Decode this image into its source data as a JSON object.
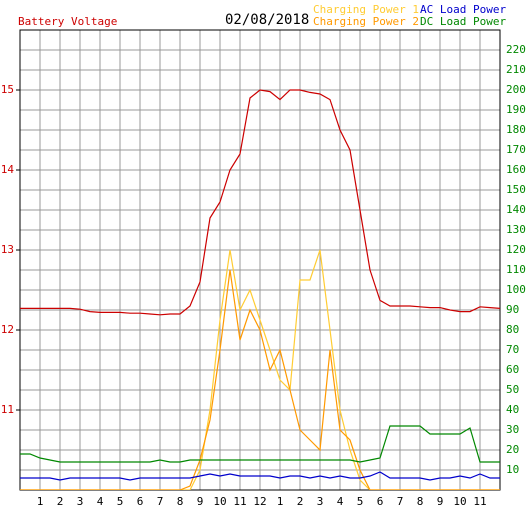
{
  "chart_data": {
    "type": "line",
    "date": "02/08/2018",
    "grid": true,
    "x": [
      0,
      0.5,
      1,
      1.5,
      2,
      2.5,
      3,
      3.5,
      4,
      4.5,
      5,
      5.5,
      6,
      6.5,
      7,
      7.5,
      8,
      8.5,
      9,
      9.5,
      10,
      10.5,
      11,
      11.5,
      12,
      12.5,
      13,
      13.5,
      14,
      14.5,
      15,
      15.5,
      16,
      16.5,
      17,
      17.5,
      18,
      18.5,
      19,
      19.5,
      20,
      20.5,
      21,
      21.5,
      22,
      22.5,
      23,
      23.5,
      24
    ],
    "xlim": [
      0,
      24
    ],
    "xticks": [
      1,
      2,
      3,
      4,
      5,
      6,
      7,
      8,
      9,
      10,
      11,
      12,
      {
        "value": 13,
        "label": "1"
      },
      {
        "value": 14,
        "label": "2"
      },
      {
        "value": 15,
        "label": "3"
      },
      {
        "value": 16,
        "label": "4"
      },
      {
        "value": 17,
        "label": "5"
      },
      {
        "value": 18,
        "label": "6"
      },
      {
        "value": 19,
        "label": "7"
      },
      {
        "value": 20,
        "label": "8"
      },
      {
        "value": 21,
        "label": "9"
      },
      {
        "value": 22,
        "label": "10"
      },
      {
        "value": 23,
        "label": "11"
      }
    ],
    "ylim": [
      10,
      15.75
    ],
    "yticks": [
      11,
      12,
      13,
      14,
      15
    ],
    "y2lim": [
      0,
      230
    ],
    "y2ticks": [
      10,
      20,
      30,
      40,
      50,
      60,
      70,
      80,
      90,
      100,
      110,
      120,
      130,
      140,
      150,
      160,
      170,
      180,
      190,
      200,
      210,
      220
    ],
    "series": [
      {
        "name": "Battery Voltage",
        "color": "#cc0000",
        "values": [
          12.27,
          12.27,
          12.27,
          12.27,
          12.27,
          12.27,
          12.26,
          12.23,
          12.22,
          12.22,
          12.22,
          12.21,
          12.21,
          12.2,
          12.19,
          12.2,
          12.2,
          12.3,
          12.6,
          13.4,
          13.6,
          14.0,
          14.2,
          14.9,
          15.0,
          14.98,
          14.88,
          15.0,
          15.0,
          14.97,
          14.95,
          14.88,
          14.5,
          14.25,
          13.5,
          12.75,
          12.37,
          12.3,
          12.3,
          12.3,
          12.29,
          12.28,
          12.28,
          12.25,
          12.23,
          12.23,
          12.29,
          12.28,
          12.27
        ]
      },
      {
        "name": "Charging Power 1",
        "color": "#ffcc33",
        "axis": "y2",
        "values": [
          0,
          0,
          0,
          0,
          0,
          0,
          0,
          0,
          0,
          0,
          0,
          0,
          0,
          0,
          0,
          0,
          0,
          0,
          10,
          40,
          85,
          120,
          90,
          100,
          85,
          70,
          55,
          50,
          105,
          105,
          120,
          80,
          40,
          20,
          5,
          0,
          0,
          0,
          0,
          0,
          0,
          0,
          0,
          0,
          0,
          0,
          0,
          0,
          0
        ]
      },
      {
        "name": "Charging Power 2",
        "color": "#ff9900",
        "axis": "y2",
        "values": [
          0,
          0,
          0,
          0,
          0,
          0,
          0,
          0,
          0,
          0,
          0,
          0,
          0,
          0,
          0,
          0,
          0,
          2,
          15,
          35,
          70,
          110,
          75,
          90,
          80,
          60,
          70,
          50,
          30,
          25,
          20,
          70,
          30,
          25,
          10,
          0,
          0,
          0,
          0,
          0,
          0,
          0,
          0,
          0,
          0,
          0,
          0,
          0,
          0
        ]
      },
      {
        "name": "AC Load Power",
        "color": "#0000cc",
        "axis": "y2",
        "values": [
          6,
          6,
          6,
          6,
          5,
          6,
          6,
          6,
          6,
          6,
          6,
          5,
          6,
          6,
          6,
          6,
          6,
          6,
          7,
          8,
          7,
          8,
          7,
          7,
          7,
          7,
          6,
          7,
          7,
          6,
          7,
          6,
          7,
          6,
          6,
          7,
          9,
          6,
          6,
          6,
          6,
          5,
          6,
          6,
          7,
          6,
          8,
          6,
          6
        ]
      },
      {
        "name": "DC Load Power",
        "color": "#008800",
        "axis": "y2",
        "values": [
          18,
          18,
          16,
          15,
          14,
          14,
          14,
          14,
          14,
          14,
          14,
          14,
          14,
          14,
          15,
          14,
          14,
          15,
          15,
          15,
          15,
          15,
          15,
          15,
          15,
          15,
          15,
          15,
          15,
          15,
          15,
          15,
          15,
          15,
          14,
          15,
          16,
          32,
          32,
          32,
          32,
          28,
          28,
          28,
          28,
          31,
          14,
          14,
          14
        ]
      }
    ]
  }
}
